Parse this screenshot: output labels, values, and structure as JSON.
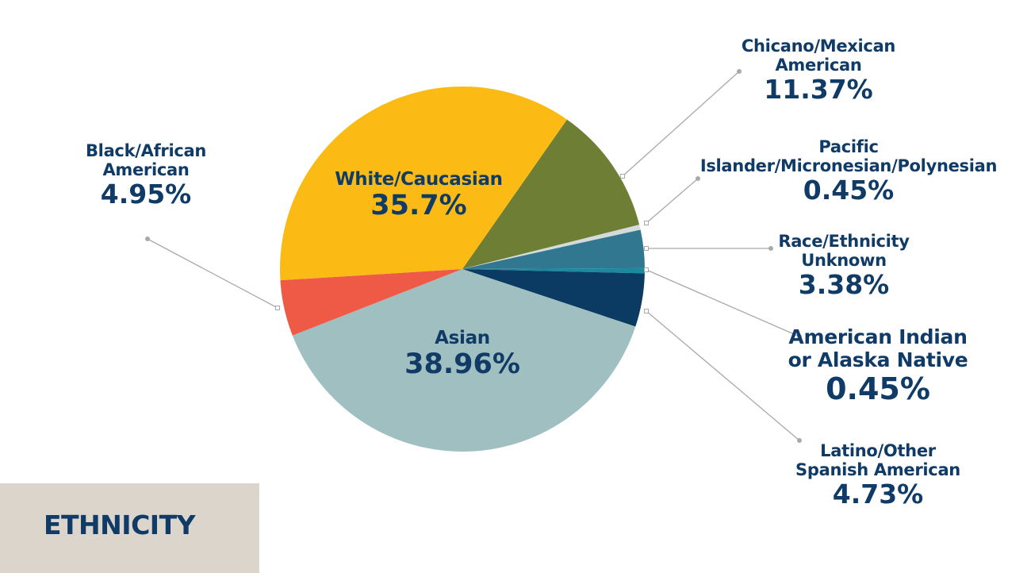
{
  "chart_data": {
    "type": "pie",
    "title": "ETHNICITY",
    "unit": "%",
    "slices": [
      {
        "label_lines": [
          "Chicano/Mexican",
          "American"
        ],
        "value": 11.37,
        "color": "#6e7f35"
      },
      {
        "label_lines": [
          "Pacific",
          "Islander/Micronesian/Polynesian"
        ],
        "value": 0.45,
        "color": "#d3dbdb"
      },
      {
        "label_lines": [
          "Race/Ethnicity",
          "Unknown"
        ],
        "value": 3.38,
        "color": "#30778f"
      },
      {
        "label_lines": [
          "American Indian",
          "or Alaska Native"
        ],
        "value": 0.45,
        "color": "#1a8a9e"
      },
      {
        "label_lines": [
          "Latino/Other",
          "Spanish American"
        ],
        "value": 4.73,
        "color": "#0b3a62"
      },
      {
        "label_lines": [
          "Asian"
        ],
        "value": 38.96,
        "color": "#a0bfc1"
      },
      {
        "label_lines": [
          "Black/African",
          "American"
        ],
        "value": 4.95,
        "color": "#ef5a47"
      },
      {
        "label_lines": [
          "White/Caucasian"
        ],
        "value": 35.7,
        "color": "#fbbb14"
      }
    ],
    "text_color": "#0f3b66",
    "legend": "none"
  }
}
